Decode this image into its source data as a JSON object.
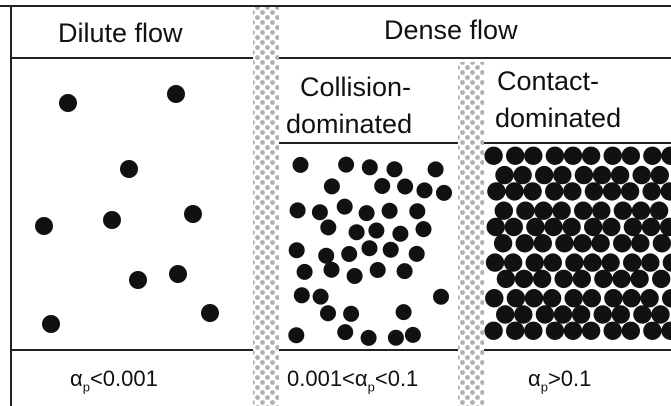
{
  "colors": {
    "particle": "#111111",
    "line": "#222222",
    "divider_dot": "#b0b0b0",
    "background": "#ffffff"
  },
  "headers": {
    "dilute": "Dilute flow",
    "dense": "Dense flow",
    "collision_line1": "Collision-",
    "collision_line2": "dominated",
    "contact_line1": "Contact-",
    "contact_line2": "dominated"
  },
  "footers": {
    "dilute": {
      "symbol": "α",
      "sub": "p",
      "rest": "<0.001"
    },
    "collision": {
      "before": "0.001<",
      "symbol": "α",
      "sub": "p",
      "rest": "<0.1"
    },
    "contact": {
      "symbol": "α",
      "sub": "p",
      "rest": ">0.1"
    }
  },
  "regimes": [
    {
      "name": "dilute",
      "volume_fraction": "<0.001",
      "packing": "sparse"
    },
    {
      "name": "collision-dominated",
      "volume_fraction": "0.001–0.1",
      "packing": "moderate"
    },
    {
      "name": "contact-dominated",
      "volume_fraction": ">0.1",
      "packing": "dense"
    }
  ]
}
